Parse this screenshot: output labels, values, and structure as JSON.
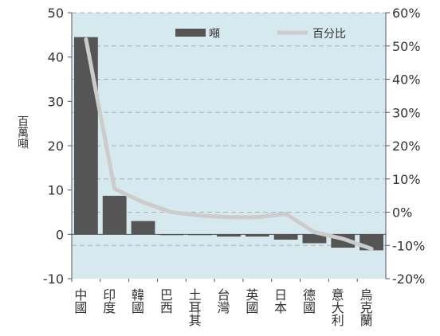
{
  "chart_data": {
    "type": "bar",
    "ylabel": "百萬噸",
    "categories": [
      "中國",
      "印度",
      "韓國",
      "巴西",
      "土耳其",
      "台灣",
      "英國",
      "日本",
      "德國",
      "意大利",
      "烏克蘭"
    ],
    "series": [
      {
        "name": "噸",
        "type": "bar",
        "axis": "left",
        "color": "#555555",
        "values": [
          44.5,
          8.7,
          3.0,
          0.0,
          -0.1,
          -0.5,
          -0.5,
          -1.2,
          -2.0,
          -3.0,
          -3.6
        ]
      },
      {
        "name": "百分比",
        "type": "line",
        "axis": "right",
        "color": "#cccccc",
        "values": [
          52,
          7,
          3,
          0,
          -1,
          -1.5,
          -1.5,
          -0.5,
          -6,
          -8,
          -11
        ]
      }
    ],
    "y_left": {
      "min": -10,
      "max": 50,
      "ticks": [
        -10,
        0,
        10,
        20,
        30,
        40,
        50
      ]
    },
    "y_right": {
      "min": -20,
      "max": 60,
      "ticks": [
        -20,
        -10,
        0,
        10,
        20,
        30,
        40,
        50,
        60
      ],
      "tick_labels": [
        "-20%",
        "-10%",
        "0%",
        "10%",
        "20%",
        "30%",
        "40%",
        "50%",
        "60%"
      ]
    },
    "grid": "dashed horizontal",
    "legend_position": "top-right",
    "background": "#d6e9ee"
  }
}
